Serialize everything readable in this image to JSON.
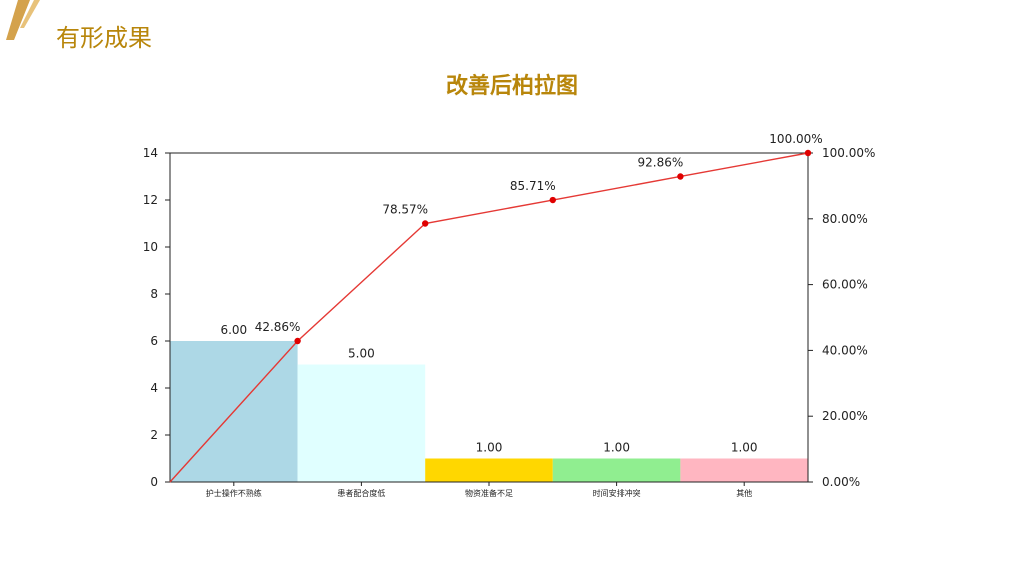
{
  "slide": {
    "title": "有形成果",
    "accent_color": "#b8860b"
  },
  "chart_data": {
    "type": "bar",
    "title": "改善后柏拉图",
    "categories": [
      "护士操作不熟练",
      "患者配合度低",
      "物资准备不足",
      "时间安排冲突",
      "其他"
    ],
    "values": [
      6,
      5,
      1,
      1,
      1
    ],
    "value_labels": [
      "6.00",
      "5.00",
      "1.00",
      "1.00",
      "1.00"
    ],
    "bar_colors": [
      "#add8e6",
      "#e0ffff",
      "#ffd700",
      "#90ee90",
      "#ffb6c1"
    ],
    "ylim": [
      0,
      14
    ],
    "yticks": [
      0,
      2,
      4,
      6,
      8,
      10,
      12,
      14
    ],
    "cumulative": {
      "values": [
        0,
        42.86,
        78.57,
        85.71,
        92.86,
        100.0
      ],
      "labels": [
        "",
        "42.86%",
        "78.57%",
        "85.71%",
        "92.86%",
        "100.00%"
      ],
      "highlight_index": 2,
      "highlight_color": "#ff0000",
      "line_color": "#e53935"
    },
    "y2lim": [
      0,
      100
    ],
    "y2ticks": [
      "0.00%",
      "20.00%",
      "40.00%",
      "60.00%",
      "80.00%",
      "100.00%"
    ],
    "grid": false
  }
}
